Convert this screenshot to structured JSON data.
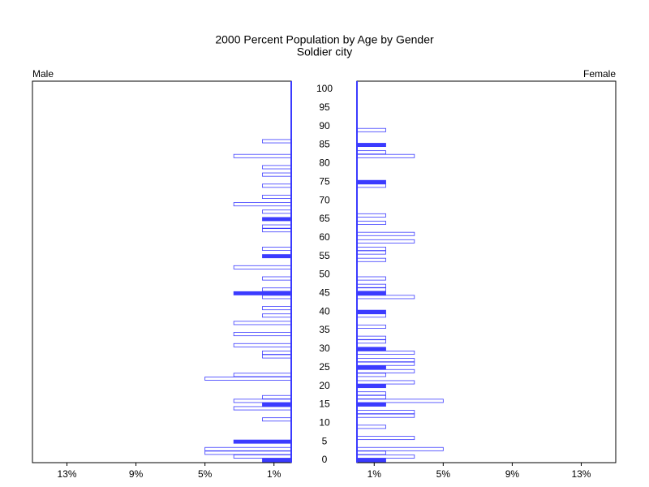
{
  "chart_data": {
    "type": "pyramid",
    "title": "2000 Percent Population by Age by Gender",
    "subtitle": "Soldier city",
    "ages": [
      0,
      1,
      2,
      3,
      4,
      5,
      6,
      7,
      8,
      9,
      10,
      11,
      12,
      13,
      14,
      15,
      16,
      17,
      18,
      19,
      20,
      21,
      22,
      23,
      24,
      25,
      26,
      27,
      28,
      29,
      30,
      31,
      32,
      33,
      34,
      35,
      36,
      37,
      38,
      39,
      40,
      41,
      42,
      43,
      44,
      45,
      46,
      47,
      48,
      49,
      50,
      51,
      52,
      53,
      54,
      55,
      56,
      57,
      58,
      59,
      60,
      61,
      62,
      63,
      64,
      65,
      66,
      67,
      68,
      69,
      70,
      71,
      72,
      73,
      74,
      75,
      76,
      77,
      78,
      79,
      80,
      81,
      82,
      83,
      84,
      85,
      86,
      87,
      88,
      89,
      90,
      91,
      92,
      93,
      94,
      95,
      96,
      97,
      98,
      99,
      100
    ],
    "series": [
      {
        "name": "Male",
        "color": "#3b3bff",
        "values": [
          1.67,
          3.33,
          5,
          5,
          0,
          3.33,
          0,
          0,
          0,
          0,
          0,
          1.67,
          0,
          0,
          3.33,
          1.67,
          3.33,
          1.67,
          0,
          0,
          0,
          0,
          5,
          3.33,
          0,
          0,
          0,
          0,
          1.67,
          1.67,
          0,
          3.33,
          0,
          0,
          3.33,
          0,
          0,
          3.33,
          0,
          1.67,
          0,
          1.67,
          0,
          0,
          1.67,
          3.33,
          1.67,
          0,
          0,
          1.67,
          0,
          0,
          3.33,
          0,
          0,
          1.67,
          0,
          1.67,
          0,
          0,
          0,
          0,
          1.67,
          1.67,
          0,
          1.67,
          0,
          1.67,
          0,
          3.33,
          0,
          1.67,
          0,
          0,
          1.67,
          0,
          0,
          1.67,
          0,
          1.67,
          0,
          0,
          3.33,
          0,
          0,
          0,
          1.67,
          0,
          0,
          0,
          0,
          0,
          0,
          0,
          0,
          0,
          0,
          0,
          0,
          0,
          0
        ]
      },
      {
        "name": "Female",
        "color": "#3b3bff",
        "values": [
          1.67,
          3.33,
          1.67,
          5,
          0,
          0,
          3.33,
          0,
          0,
          1.67,
          0,
          0,
          3.33,
          3.33,
          0,
          1.67,
          5,
          1.67,
          1.67,
          0,
          1.67,
          3.33,
          0,
          1.67,
          3.33,
          1.67,
          3.33,
          3.33,
          0,
          3.33,
          1.67,
          0,
          1.67,
          1.67,
          0,
          0,
          1.67,
          0,
          0,
          1.67,
          1.67,
          0,
          0,
          0,
          3.33,
          1.67,
          1.67,
          1.67,
          0,
          1.67,
          0,
          0,
          0,
          0,
          1.67,
          0,
          1.67,
          1.67,
          0,
          3.33,
          0,
          3.33,
          0,
          0,
          1.67,
          0,
          1.67,
          0,
          0,
          0,
          0,
          0,
          0,
          0,
          1.67,
          1.67,
          0,
          0,
          0,
          0,
          0,
          0,
          3.33,
          1.67,
          0,
          1.67,
          0,
          0,
          0,
          1.67,
          0,
          0,
          0,
          0,
          0,
          0,
          0,
          0,
          0,
          0,
          0
        ]
      }
    ],
    "xlim": [
      0,
      15
    ],
    "xticks": [
      {
        "value": 1,
        "label": "1%"
      },
      {
        "value": 5,
        "label": "5%"
      },
      {
        "value": 9,
        "label": "9%"
      },
      {
        "value": 13,
        "label": "13%"
      }
    ],
    "ylim": [
      0,
      100
    ],
    "yticks": [
      0,
      5,
      10,
      15,
      20,
      25,
      30,
      35,
      40,
      45,
      50,
      55,
      60,
      65,
      70,
      75,
      80,
      85,
      90,
      95,
      100
    ]
  }
}
